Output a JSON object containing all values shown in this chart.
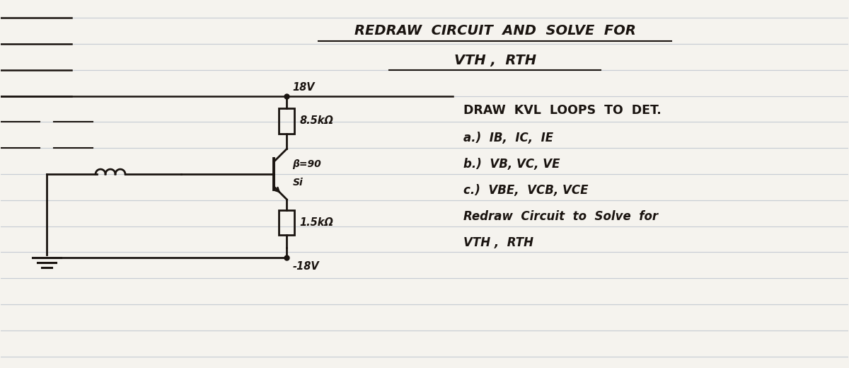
{
  "bg_color": "#f5f3ee",
  "line_color": "#c8cdd4",
  "ink_color": "#1a1410",
  "title_line1": "REDRAW  CIRCUIT  AND  SOLVE  FOR",
  "title_line2": "VTH ,  RTH",
  "note_line1": "DRAW  KVL  LOOPS  TO  DET.",
  "note_line2": "a.)  IB,  IC,  IE",
  "note_line3": "b.)  VB, VC, VE",
  "note_line4": "c.)  VBE,  VCB, VCE",
  "note_line5": "Redraw  Circuit  to  Solve  for",
  "note_line6": "VTH ,  RTH",
  "v_top": "18V",
  "v_bot": "-18V",
  "r_top": "8.5k",
  "r_bot": "1.5k",
  "beta": "=90",
  "si": "Si"
}
